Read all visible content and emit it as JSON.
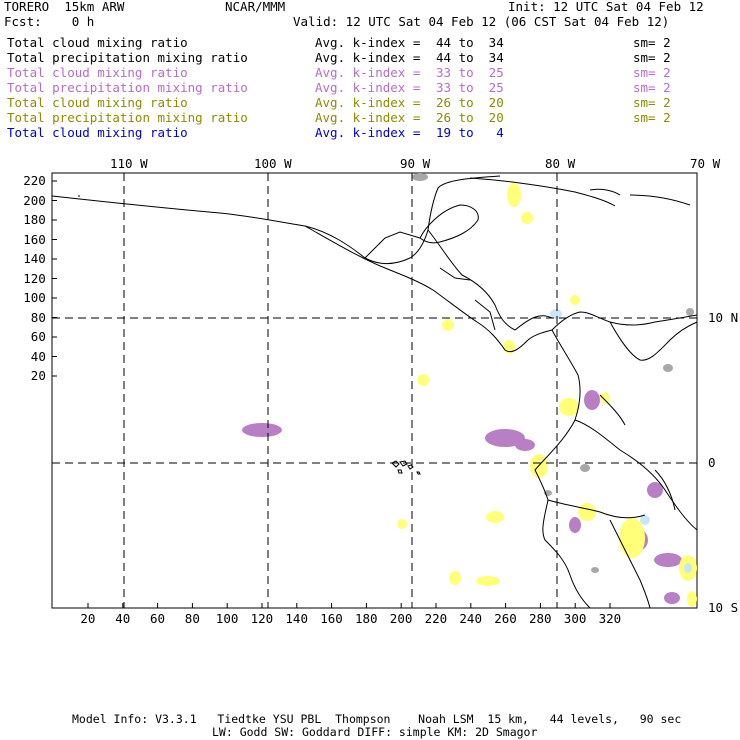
{
  "header": {
    "model": "TORERO  15km ARW",
    "center": "NCAR/MMM",
    "init": "Init: 12 UTC Sat 04 Feb 12",
    "fcst": "Fcst:    0 h",
    "valid": "Valid: 12 UTC Sat 04 Feb 12 (06 CST Sat 04 Feb 12)"
  },
  "legend": [
    {
      "field": "Total cloud mixing ratio",
      "avg": "Avg. k-index =",
      "range": "44 to  34",
      "sm": "sm= 2",
      "color": "#000000"
    },
    {
      "field": "Total precipitation mixing ratio",
      "avg": "Avg. k-index =",
      "range": "44 to  34",
      "sm": "sm= 2",
      "color": "#000000"
    },
    {
      "field": "Total cloud mixing ratio",
      "avg": "Avg. k-index =",
      "range": "33 to  25",
      "sm": "sm= 2",
      "color": "#b46ec8"
    },
    {
      "field": "Total precipitation mixing ratio",
      "avg": "Avg. k-index =",
      "range": "33 to  25",
      "sm": "sm= 2",
      "color": "#b46ec8"
    },
    {
      "field": "Total cloud mixing ratio",
      "avg": "Avg. k-index =",
      "range": "26 to  20",
      "sm": "sm= 2",
      "color": "#8c8c00"
    },
    {
      "field": "Total precipitation mixing ratio",
      "avg": "Avg. k-index =",
      "range": "26 to  20",
      "sm": "sm= 2",
      "color": "#8c8c00"
    },
    {
      "field": "Total cloud mixing ratio",
      "avg": "Avg. k-index =",
      "range": "19 to   4",
      "sm": "",
      "color": "#0000cc"
    }
  ],
  "map": {
    "top_labels": [
      "110 W",
      "100 W",
      "90 W",
      "80 W",
      "70 W"
    ],
    "right_labels": [
      "10 N",
      "0",
      "10 S"
    ],
    "x_ticks": [
      "20",
      "40",
      "60",
      "80",
      "100",
      "120",
      "140",
      "160",
      "180",
      "200",
      "220",
      "240",
      "260",
      "280",
      "300",
      "320"
    ],
    "y_ticks": [
      "220",
      "200",
      "180",
      "160",
      "140",
      "120",
      "100",
      "80",
      "60",
      "40",
      "20"
    ],
    "colors": {
      "purple": "#b97fc4",
      "yellow": "#ffff78",
      "lightblue": "#c8e6f8",
      "gray": "#a8a8a8"
    }
  },
  "footer": {
    "line1": "Model Info: V3.3.1   Tiedtke YSU PBL  Thompson    Noah LSM  15 km,   44 levels,   90 sec",
    "line2": "LW: Godd SW: Goddard DIFF: simple KM: 2D Smagor"
  }
}
